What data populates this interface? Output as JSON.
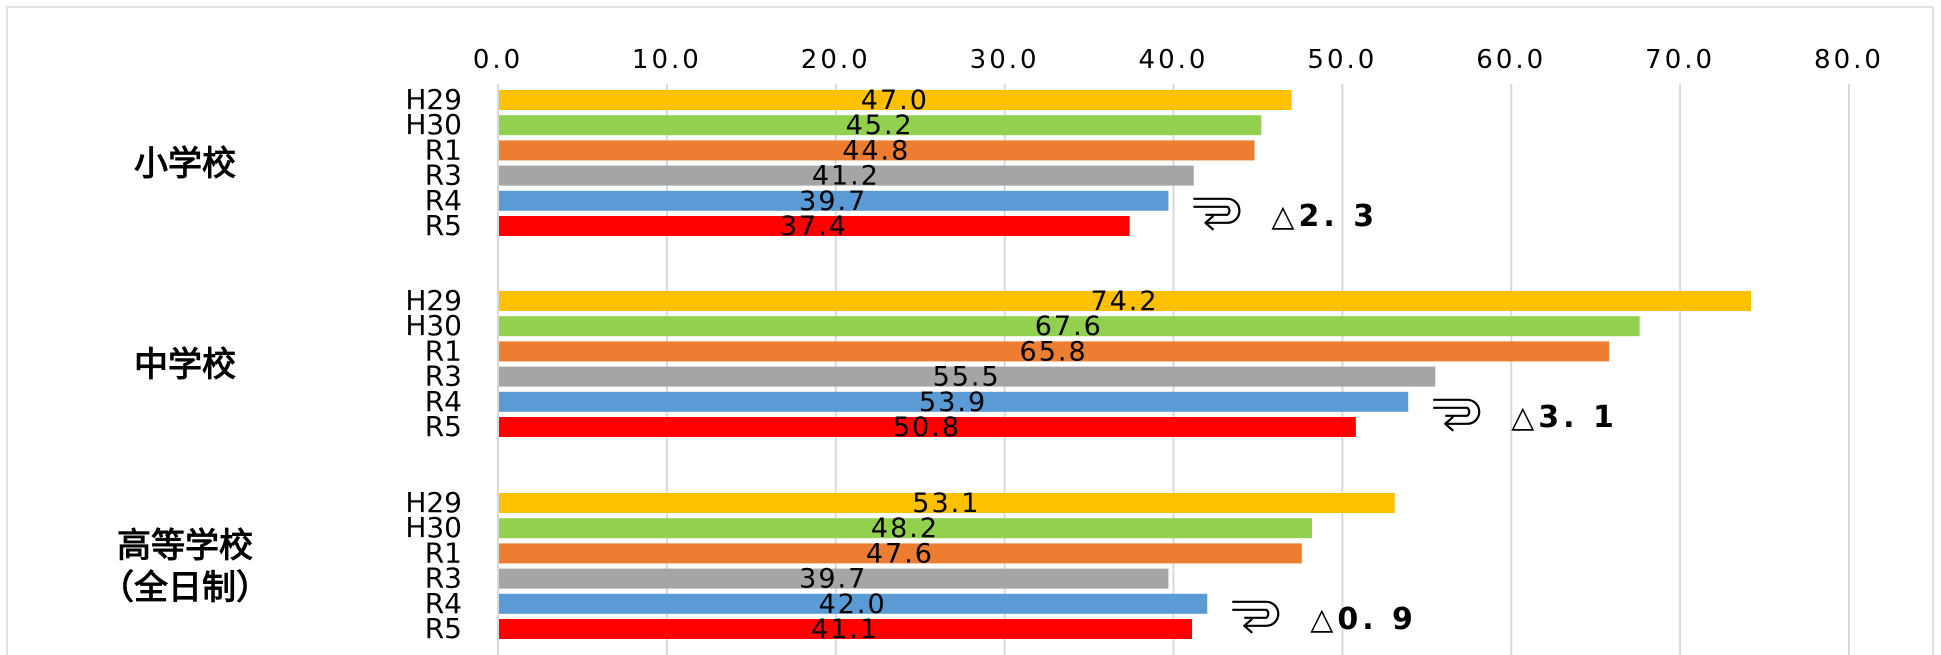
{
  "chart_data": {
    "type": "bar",
    "orientation": "horizontal",
    "title": "",
    "xlim": [
      0,
      80
    ],
    "x_ticks": [
      "0.0",
      "10.0",
      "20.0",
      "30.0",
      "40.0",
      "50.0",
      "60.0",
      "70.0",
      "80.0"
    ],
    "x_tick_values": [
      0,
      10,
      20,
      30,
      40,
      50,
      60,
      70,
      80
    ],
    "grid": true,
    "legend": "none",
    "categories": [
      "H29",
      "H30",
      "R1",
      "R3",
      "R4",
      "R5"
    ],
    "category_colors": [
      "#ffc000",
      "#92d050",
      "#ed7d31",
      "#a5a5a5",
      "#5b9bd5",
      "#ff0000"
    ],
    "groups": [
      {
        "label_lines": [
          "小学校"
        ],
        "values": [
          47.0,
          45.2,
          44.8,
          41.2,
          39.7,
          37.4
        ],
        "value_labels": [
          "47.0",
          "45.2",
          "44.8",
          "41.2",
          "39.7",
          "37.4"
        ],
        "change_label": "△2. 3"
      },
      {
        "label_lines": [
          "中学校"
        ],
        "values": [
          74.2,
          67.6,
          65.8,
          55.5,
          53.9,
          50.8
        ],
        "value_labels": [
          "74.2",
          "67.6",
          "65.8",
          "55.5",
          "53.9",
          "50.8"
        ],
        "change_label": "△3. 1"
      },
      {
        "label_lines": [
          "高等学校",
          "（全日制）"
        ],
        "values": [
          53.1,
          48.2,
          47.6,
          39.7,
          42.0,
          41.1
        ],
        "value_labels": [
          "53.1",
          "48.2",
          "47.6",
          "39.7",
          "42.0",
          "41.1"
        ],
        "change_label": "△0. 9"
      }
    ]
  }
}
